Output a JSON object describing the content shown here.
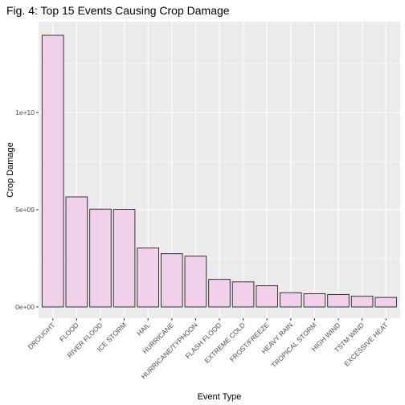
{
  "chart_data": {
    "type": "bar",
    "title": "Fig. 4: Top 15 Events Causing Crop Damage",
    "xlabel": "Event Type",
    "ylabel": "Crop Damage",
    "categories": [
      "DROUGHT",
      "FLOOD",
      "RIVER FLOOD",
      "ICE STORM",
      "HAIL",
      "HURRICANE",
      "HURRICANE/TYPHOON",
      "FLASH FLOOD",
      "EXTREME COLD",
      "FROST/FREEZE",
      "HEAVY RAIN",
      "TROPICAL STORM",
      "HIGH WIND",
      "TSTM WIND",
      "EXCESSIVE HEAT"
    ],
    "values": [
      13970000000,
      5660000000,
      5030000000,
      5020000000,
      3030000000,
      2740000000,
      2610000000,
      1420000000,
      1290000000,
      1090000000,
      730000000,
      680000000,
      640000000,
      550000000,
      490000000
    ],
    "ylim": [
      -580000000,
      14670000000
    ],
    "yticks": [
      0,
      5000000000,
      10000000000
    ],
    "ytick_labels": [
      "0e+00",
      "5e+09",
      "1e+10"
    ],
    "grid": true,
    "colors": {
      "panel_bg": "#ebebeb",
      "grid_major": "#ffffff",
      "bar_fill": "#f0d0eb",
      "bar_stroke": "#333333"
    }
  }
}
